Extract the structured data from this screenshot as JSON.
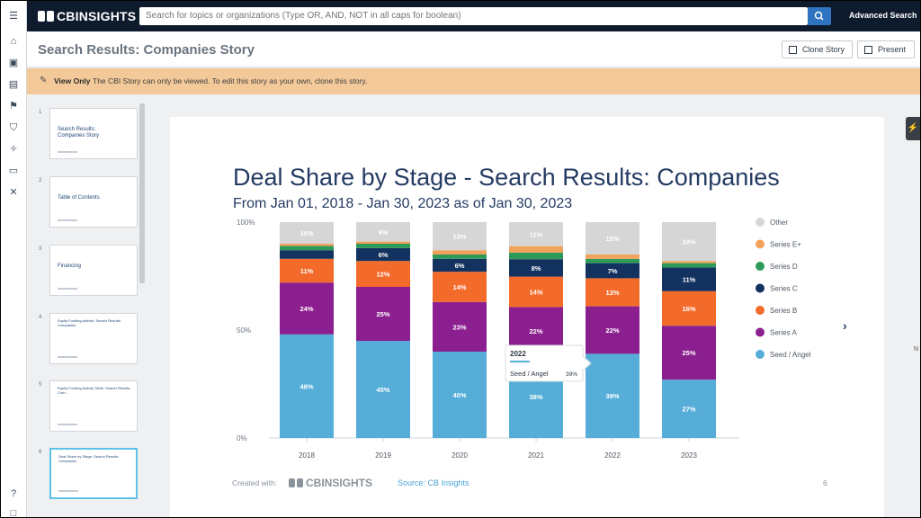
{
  "app": {
    "brand": "CBINSIGHTS",
    "search_placeholder": "Search for topics or organizations (Type OR, AND, NOT in all caps for boolean)",
    "advanced_search": "Advanced Search"
  },
  "header": {
    "title": "Search Results: Companies Story",
    "clone_label": "Clone Story",
    "present_label": "Present"
  },
  "banner": {
    "label": "View Only",
    "message": "The CBI Story can only be viewed. To edit this story as your own, clone this story."
  },
  "thumbnails": [
    {
      "num": "1",
      "title": "Search Results:\nCompanies Story"
    },
    {
      "num": "2",
      "title": "Table of Contents"
    },
    {
      "num": "3",
      "title": "Financing"
    },
    {
      "num": "4",
      "title": "Equity Funding Activity: Search Results: Companies"
    },
    {
      "num": "5",
      "title": "Equity Funding Activity Table: Search Results: Com..."
    },
    {
      "num": "6",
      "title": "Deal Share by Stage: Search Results: Companies"
    }
  ],
  "slide": {
    "title": "Deal Share by Stage - Search Results: Companies",
    "subtitle": "From Jan 01, 2018 - Jan 30, 2023 as of Jan 30, 2023",
    "created_with": "Created with:",
    "footer_brand": "CBINSIGHTS",
    "source": "Source: CB Insights",
    "page_number": "6",
    "tooltip": {
      "year": "2022",
      "label": "Seed / Angel",
      "value": "39%"
    }
  },
  "right_panel": {
    "label": "N"
  },
  "chart_data": {
    "type": "bar",
    "stacked": true,
    "categories": [
      "2018",
      "2019",
      "2020",
      "2021",
      "2022",
      "2023"
    ],
    "y_ticks": [
      "0%",
      "50%",
      "100%"
    ],
    "ylim": [
      0,
      100
    ],
    "series": [
      {
        "name": "Seed / Angel",
        "color": "#56aed8",
        "values": [
          48,
          45,
          40,
          38,
          39,
          27
        ],
        "labels": [
          "48%",
          "45%",
          "40%",
          "38%",
          "39%",
          "27%"
        ]
      },
      {
        "name": "Series A",
        "color": "#8b1f8f",
        "values": [
          24,
          25,
          23,
          22,
          22,
          25
        ],
        "labels": [
          "24%",
          "25%",
          "23%",
          "22%",
          "22%",
          "25%"
        ]
      },
      {
        "name": "Series B",
        "color": "#f36b2b",
        "values": [
          11,
          12,
          14,
          14,
          13,
          16
        ],
        "labels": [
          "11%",
          "12%",
          "14%",
          "14%",
          "13%",
          "16%"
        ]
      },
      {
        "name": "Series C",
        "color": "#13325f",
        "values": [
          4,
          6,
          6,
          8,
          7,
          11
        ],
        "labels": [
          "",
          "6%",
          "6%",
          "8%",
          "7%",
          "11%"
        ]
      },
      {
        "name": "Series D",
        "color": "#2e9a5a",
        "values": [
          2,
          2,
          2,
          3,
          2,
          2
        ],
        "labels": [
          "",
          "",
          "",
          "",
          "",
          ""
        ]
      },
      {
        "name": "Series E+",
        "color": "#f2a25a",
        "values": [
          1,
          1,
          2,
          3,
          2,
          1
        ],
        "labels": [
          "",
          "",
          "",
          "",
          "",
          ""
        ]
      },
      {
        "name": "Other",
        "color": "#d6d6d6",
        "values": [
          10,
          9,
          13,
          11,
          15,
          18
        ],
        "labels": [
          "10%",
          "9%",
          "13%",
          "11%",
          "15%",
          "18%"
        ]
      }
    ],
    "legend": [
      "Other",
      "Series E+",
      "Series D",
      "Series C",
      "Series B",
      "Series A",
      "Seed / Angel"
    ],
    "legend_position": "right"
  }
}
